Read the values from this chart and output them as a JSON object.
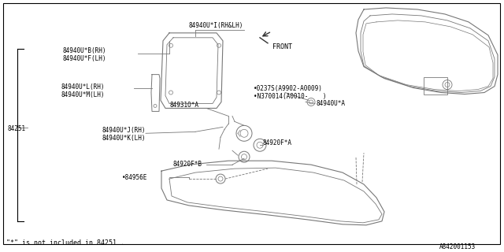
{
  "bg_color": "#ffffff",
  "line_color": "#777777",
  "text_color": "#000000",
  "footnote": "\"*\" is not included in 84251 .",
  "diagram_id": "A842001153",
  "labels": {
    "front_arrow": "FRONT",
    "part_84940UI": "84940U*I(RH&LH)",
    "part_84940UB": "84940U*B(RH)",
    "part_84940UF": "84940U*F(LH)",
    "part_84940UL": "84940U*L(RH)",
    "part_84940UM": "84940U*M(LH)",
    "part_84251": "84251",
    "part_84940UJ": "84940U*J(RH)",
    "part_84940UK": "84940U*K(LH)",
    "part_84931": "84931O*A",
    "part_84940UA": "84940U*A",
    "part_0237S": "•0237S(A9902-A0009)",
    "part_N370014": "•N370014(A0010-    )",
    "part_84920FA": "84920F*A",
    "part_84920FB": "84920F*B",
    "part_84956E": "•84956E"
  }
}
